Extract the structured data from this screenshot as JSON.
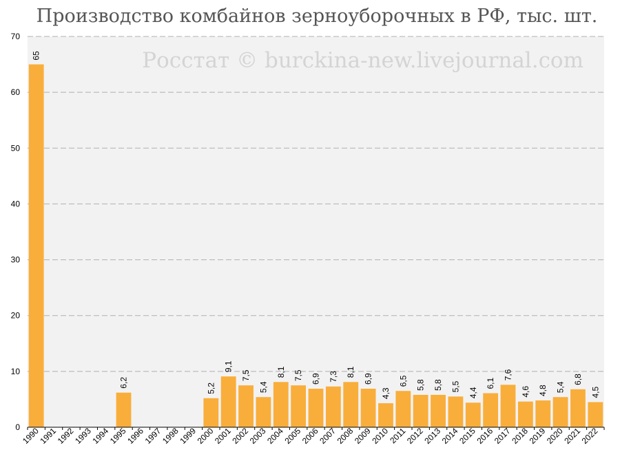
{
  "chart_data": {
    "type": "bar",
    "title": "Производство комбайнов зерноуборочных в РФ, тыс. шт.",
    "watermark": "Росстат © burckina-new.livejournal.com",
    "categories": [
      "1990",
      "1991",
      "1992",
      "1993",
      "1994",
      "1995",
      "1996",
      "1997",
      "1998",
      "1999",
      "2000",
      "2001",
      "2002",
      "2003",
      "2004",
      "2005",
      "2006",
      "2007",
      "2008",
      "2009",
      "2010",
      "2011",
      "2012",
      "2013",
      "2014",
      "2015",
      "2016",
      "2017",
      "2018",
      "2019",
      "2020",
      "2021",
      "2022"
    ],
    "values": [
      65,
      null,
      null,
      null,
      null,
      6.2,
      null,
      null,
      null,
      null,
      5.2,
      9.1,
      7.5,
      5.4,
      8.1,
      7.5,
      6.9,
      7.3,
      8.1,
      6.9,
      4.3,
      6.5,
      5.8,
      5.8,
      5.5,
      4.4,
      6.1,
      7.6,
      4.6,
      4.8,
      5.4,
      6.8,
      4.5
    ],
    "data_labels": [
      "65",
      "",
      "",
      "",
      "",
      "6,2",
      "",
      "",
      "",
      "",
      "5,2",
      "9,1",
      "7,5",
      "5,4",
      "8,1",
      "7,5",
      "6,9",
      "7,3",
      "8,1",
      "6,9",
      "4,3",
      "6,5",
      "5,8",
      "5,8",
      "5,5",
      "4,4",
      "6,1",
      "7,6",
      "4,6",
      "4,8",
      "5,4",
      "6,8",
      "4,5"
    ],
    "yticks": [
      "0",
      "10",
      "20",
      "30",
      "40",
      "50",
      "60",
      "70"
    ],
    "ylim": [
      0,
      70
    ],
    "xlabel": "",
    "ylabel": "",
    "grid": true,
    "bar_color": "#f9ae3b",
    "plot_bg": "#f2f2f2",
    "grid_color": "#b0b0b0"
  }
}
